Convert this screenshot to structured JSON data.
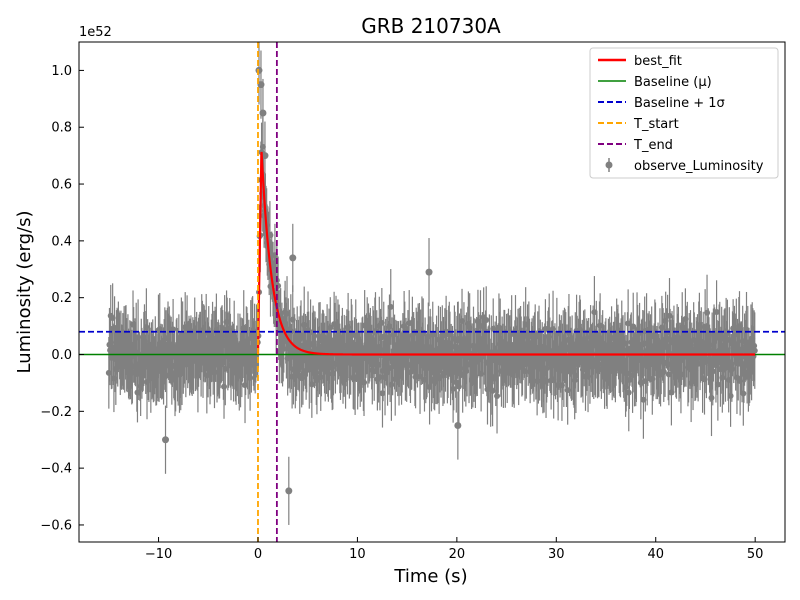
{
  "chart_data": {
    "type": "scatter",
    "title": "GRB 210730A",
    "xlabel": "Time (s)",
    "ylabel": "Luminosity (erg/s)",
    "y_scale_label": "1e52",
    "xlim": [
      -18,
      53
    ],
    "ylim": [
      -0.66,
      1.1
    ],
    "x_ticks": [
      -10,
      0,
      10,
      20,
      30,
      40,
      50
    ],
    "x_tick_labels": [
      "−10",
      "0",
      "10",
      "20",
      "30",
      "40",
      "50"
    ],
    "y_ticks": [
      -0.6,
      -0.4,
      -0.2,
      0.0,
      0.2,
      0.4,
      0.6,
      0.8,
      1.0
    ],
    "y_tick_labels": [
      "−0.6",
      "−0.4",
      "−0.2",
      "0.0",
      "0.2",
      "0.4",
      "0.6",
      "0.8",
      "1.0"
    ],
    "grid": false,
    "legend_position": "top-right",
    "observations": {
      "name": "observe_Luminosity",
      "color": "#808080",
      "x_range": [
        -15,
        50
      ],
      "typical_error": 0.12,
      "notable_points": [
        {
          "x": 0.1,
          "y": 1.0
        },
        {
          "x": 0.3,
          "y": 0.95
        },
        {
          "x": 0.5,
          "y": 0.85
        },
        {
          "x": 0.7,
          "y": 0.7
        },
        {
          "x": 1.2,
          "y": 0.42
        },
        {
          "x": 3.5,
          "y": 0.34
        },
        {
          "x": 17.2,
          "y": 0.29
        },
        {
          "x": -9.3,
          "y": -0.3
        },
        {
          "x": 20.1,
          "y": -0.25
        },
        {
          "x": 3.1,
          "y": -0.48
        }
      ]
    },
    "best_fit": {
      "name": "best_fit",
      "color": "#ff0000",
      "x_start": 0.0,
      "x_end": 50,
      "peak_time": 0.35,
      "peak_value": 0.72,
      "decay_constant": 1.05
    },
    "baseline": {
      "name": "Baseline (μ)",
      "value": 0.0,
      "color": "#008000"
    },
    "baseline_sigma": {
      "name": "Baseline + 1σ",
      "value": 0.08,
      "color": "#0000cd"
    },
    "t_start": {
      "name": "T_start",
      "value": 0.0,
      "color": "#ffa500"
    },
    "t_end": {
      "name": "T_end",
      "value": 1.9,
      "color": "#800080"
    }
  }
}
